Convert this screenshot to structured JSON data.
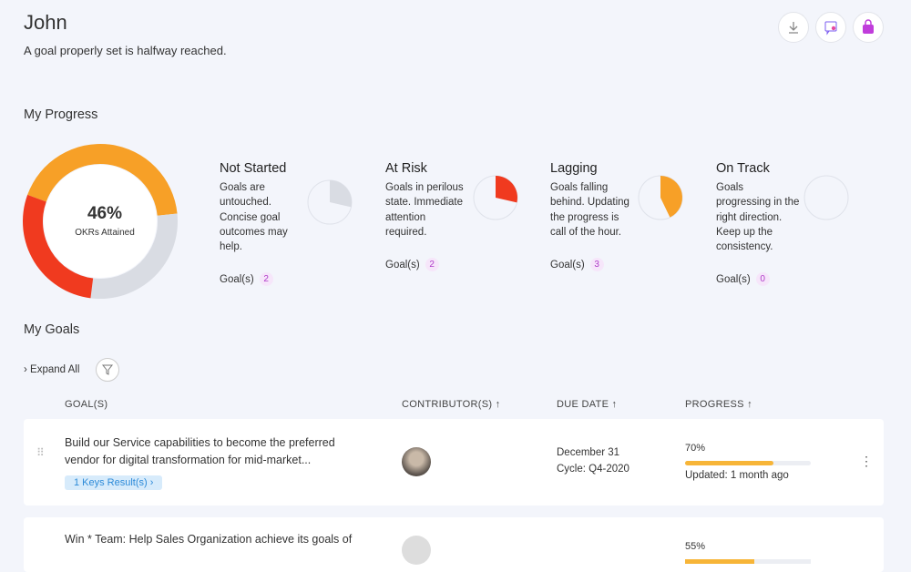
{
  "header": {
    "title": "John",
    "subtitle": "A goal properly set is halfway reached."
  },
  "progress": {
    "title": "My Progress",
    "attained": "46%",
    "attained_label": "OKRs Attained",
    "statuses": [
      {
        "name": "Not Started",
        "description": "Goals are untouched. Concise goal outcomes may help.",
        "count_label": "Goal(s)",
        "count": 2,
        "color": "#d9dce3"
      },
      {
        "name": "At Risk",
        "description": "Goals in perilous state. Immediate attention required.",
        "count_label": "Goal(s)",
        "count": 2,
        "color": "#f03a1f"
      },
      {
        "name": "Lagging",
        "description": "Goals falling behind. Updating the progress is call of the hour.",
        "count_label": "Goal(s)",
        "count": 3,
        "color": "#f7a027"
      },
      {
        "name": "On Track",
        "description": "Goals progressing in the right direction. Keep up the consistency.",
        "count_label": "Goal(s)",
        "count": 0
      }
    ]
  },
  "goals": {
    "title": "My Goals",
    "expand": "Expand All",
    "columns": [
      "GOAL(S)",
      "CONTRIBUTOR(S)",
      "DUE DATE",
      "PROGRESS"
    ],
    "rows": [
      {
        "title": "Build our Service capabilities to become the preferred vendor for digital transformation for mid-market...",
        "key_results": "1 Keys Result(s)",
        "due": "December 31",
        "cycle": "Cycle: Q4-2020",
        "progress": {
          "value": 70,
          "label": "70%"
        },
        "updated": "Updated: 1 month ago"
      },
      {
        "title": "Win * Team: Help Sales Organization achieve its goals of",
        "progress": {
          "value": 55,
          "label": "55%"
        }
      }
    ]
  }
}
